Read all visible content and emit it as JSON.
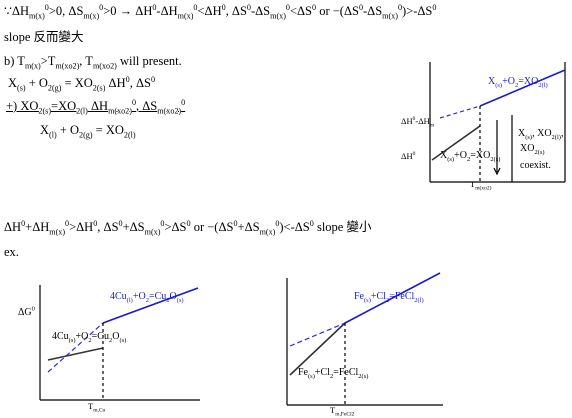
{
  "lines": [
    [
      "∵ΔH",
      {
        "sub": "m(x)"
      },
      {
        "sup": "0"
      },
      ">0, ΔS",
      {
        "sub": "m(x)"
      },
      {
        "sup": "0"
      },
      ">0 → ΔH",
      {
        "sup": "0"
      },
      "-ΔH",
      {
        "sub": "m(x)"
      },
      {
        "sup": "0"
      },
      "<ΔH",
      {
        "sup": "0"
      },
      ", ΔS",
      {
        "sup": "0"
      },
      "-ΔS",
      {
        "sub": "m(x)"
      },
      {
        "sup": "0"
      },
      "<ΔS",
      {
        "sup": "0"
      },
      " or −(ΔS",
      {
        "sup": "0"
      },
      "-ΔS",
      {
        "sub": "m(x)"
      },
      {
        "sup": "0"
      },
      ")>-ΔS",
      {
        "sup": "0"
      }
    ],
    [
      "slope 反而變大"
    ],
    [
      "b) T",
      {
        "sub": "m(x)"
      },
      ">T",
      {
        "sub": "m(xo2)"
      },
      ", T",
      {
        "sub": "m(xo2)"
      },
      " will present."
    ],
    [
      "X",
      {
        "sub": "(s)"
      },
      " + O",
      {
        "sub": "2(g)"
      },
      " = XO",
      {
        "sub": "2(s)"
      },
      "    ΔH",
      {
        "sup": "0"
      },
      ", ΔS",
      {
        "sup": "0"
      }
    ],
    [
      "+)  XO",
      {
        "sub": "2(s)"
      },
      "=XO",
      {
        "sub": "2(l)"
      },
      "            ΔH",
      {
        "sub": "m(xo2)"
      },
      {
        "sup": "0"
      },
      ", ΔS",
      {
        "sub": "m(xo2)"
      },
      {
        "sup": "0"
      }
    ],
    [
      "X",
      {
        "sub": "(l)"
      },
      " + O",
      {
        "sub": "2(g)"
      },
      " = XO",
      {
        "sub": "2(l)"
      }
    ],
    [
      "ΔH",
      {
        "sup": "0"
      },
      "+ΔH",
      {
        "sub": "m(x)"
      },
      {
        "sup": "0"
      },
      ">ΔH",
      {
        "sup": "0"
      },
      ", ΔS",
      {
        "sup": "0"
      },
      "+ΔS",
      {
        "sub": "m(x)"
      },
      {
        "sup": "0"
      },
      ">ΔS",
      {
        "sup": "0"
      },
      " or −(ΔS",
      {
        "sup": "0"
      },
      "+ΔS",
      {
        "sub": "m(x)"
      },
      {
        "sup": "0"
      },
      ")<-ΔS",
      {
        "sup": "0"
      },
      "  slope 變小"
    ],
    [
      "ex."
    ]
  ],
  "diagrams": [
    {
      "labels": [
        [
          "ΔH",
          {
            "sup": "0"
          },
          "-ΔH",
          {
            "sub": "m"
          }
        ],
        [
          "ΔH",
          {
            "sup": "0"
          }
        ],
        [
          "X",
          {
            "sub": "(s)"
          },
          "+O",
          {
            "sub": "2"
          },
          "=XO",
          {
            "sub": "2(l)"
          }
        ],
        [
          "X",
          {
            "sub": "(s)"
          },
          "+O",
          {
            "sub": "2"
          },
          "=XO",
          {
            "sub": "2(s)"
          }
        ],
        [
          "T",
          {
            "sub": "m(xo2)"
          }
        ],
        [
          "X",
          {
            "sub": "(s)"
          },
          ", XO",
          {
            "sub": "2(l)"
          },
          ","
        ],
        [
          "XO",
          {
            "sub": "2(s)"
          }
        ],
        [
          "coexist."
        ]
      ]
    },
    {
      "labels": [
        [
          "ΔG",
          {
            "sup": "0"
          }
        ],
        [
          "4Cu",
          {
            "sub": "(l)"
          },
          "+O",
          {
            "sub": "2"
          },
          "=Cu",
          {
            "sub": "2"
          },
          "O",
          {
            "sub": "(s)"
          }
        ],
        [
          "4Cu",
          {
            "sub": "(s)"
          },
          "+O",
          {
            "sub": "2"
          },
          "=Cu",
          {
            "sub": "2"
          },
          "O",
          {
            "sub": "(s)"
          }
        ],
        [
          "T",
          {
            "sub": "m,Cu"
          }
        ]
      ]
    },
    {
      "labels": [
        [
          "Fe",
          {
            "sub": "(s)"
          },
          "+Cl",
          {
            "sub": "2"
          },
          "=FeCl",
          {
            "sub": "2(l)"
          }
        ],
        [
          "Fe",
          {
            "sub": "(s)"
          },
          "+Cl",
          {
            "sub": "2"
          },
          "=FeCl",
          {
            "sub": "2(s)"
          }
        ],
        [
          "T",
          {
            "sub": "m,FeCl2"
          }
        ]
      ]
    }
  ]
}
